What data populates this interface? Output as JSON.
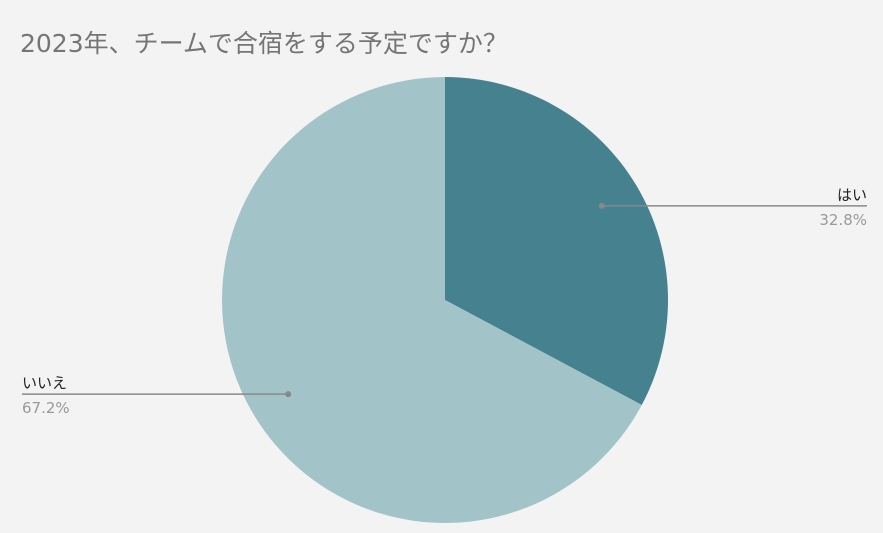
{
  "chart_data": {
    "type": "pie",
    "title": "2023年、チームで合宿をする予定ですか？",
    "slices": [
      {
        "label": "はい",
        "value": 32.8,
        "value_label": "32.8%",
        "color": "#45818e"
      },
      {
        "label": "いいえ",
        "value": 67.2,
        "value_label": "67.2%",
        "color": "#a2c4c9"
      }
    ],
    "start_angle": "12 o'clock, clockwise",
    "legend": "none (callout labels)"
  }
}
